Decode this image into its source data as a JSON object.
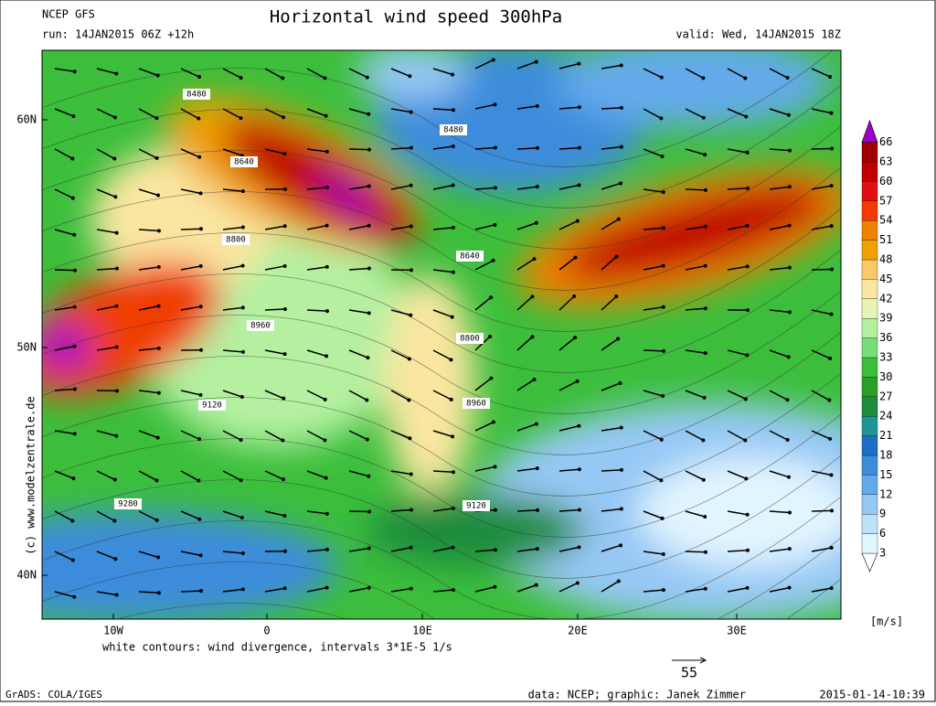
{
  "header": {
    "model": "NCEP GFS",
    "run": "run: 14JAN2015 06Z +12h",
    "title": "Horizontal wind speed 300hPa",
    "valid": "valid: Wed, 14JAN2015 18Z"
  },
  "map": {
    "lat_labels": [
      "60N",
      "50N",
      "40N"
    ],
    "lon_labels": [
      "10W",
      "0",
      "10E",
      "20E",
      "30E"
    ],
    "contour_labels": [
      "8480",
      "8480",
      "8640",
      "8640",
      "8800",
      "8960",
      "8800",
      "9120",
      "9280",
      "9120",
      "8960"
    ],
    "watermark": "(c) www.modelzentrale.de",
    "note": "white contours: wind divergence, intervals 3*1E-5 1/s"
  },
  "legend": {
    "levels": [
      3,
      6,
      9,
      12,
      15,
      18,
      21,
      24,
      27,
      30,
      33,
      36,
      39,
      42,
      45,
      48,
      51,
      54,
      57,
      60,
      63,
      66
    ],
    "colors": [
      "#ffffff",
      "#e1f5ff",
      "#bee1fa",
      "#96c8f5",
      "#64aaeb",
      "#3c8cdc",
      "#1e6ec8",
      "#1e9696",
      "#1e8c3c",
      "#28a028",
      "#3cbe3c",
      "#78dc78",
      "#b4f0a0",
      "#e6f5b4",
      "#fae6a0",
      "#fac864",
      "#f0a000",
      "#f08200",
      "#f03c00",
      "#e01010",
      "#c00000",
      "#a00000",
      "#a000c8"
    ],
    "unit": "[m/s]",
    "vector_scale": "55"
  },
  "footer": {
    "software": "GrADS: COLA/IGES",
    "credit": "data: NCEP; graphic: Janek Zimmer",
    "timestamp": "2015-01-14-10:39"
  }
}
